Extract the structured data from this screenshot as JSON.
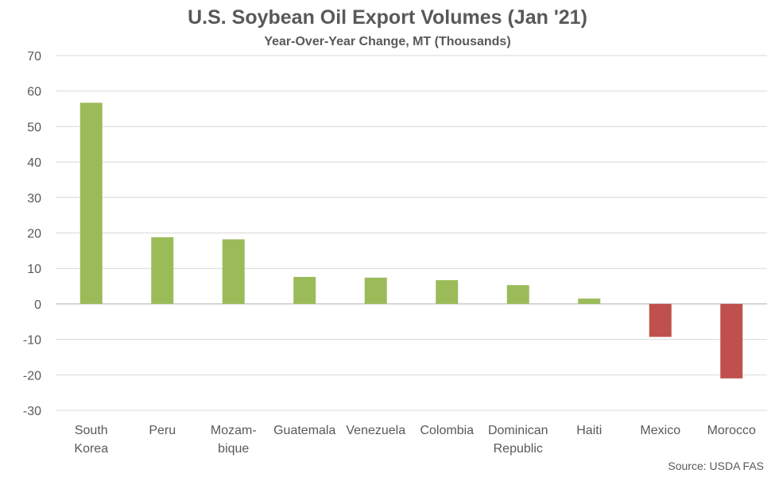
{
  "chart_data": {
    "type": "bar",
    "title": "U.S. Soybean Oil Export Volumes (Jan '21)",
    "subtitle": "Year-Over-Year Change, MT (Thousands)",
    "categories": [
      [
        "South",
        "Korea"
      ],
      [
        "Peru"
      ],
      [
        "Mozam-",
        "bique"
      ],
      [
        "Guatemala"
      ],
      [
        "Venezuela"
      ],
      [
        "Colombia"
      ],
      [
        "Dominican",
        "Republic"
      ],
      [
        "Haiti"
      ],
      [
        "Mexico"
      ],
      [
        "Morocco"
      ]
    ],
    "values": [
      56.7,
      18.8,
      18.2,
      7.6,
      7.4,
      6.7,
      5.3,
      1.5,
      -9.3,
      -21.0
    ],
    "ylim": [
      -30,
      70
    ],
    "yticks": [
      70,
      60,
      50,
      40,
      30,
      20,
      10,
      0,
      -10,
      -20,
      -30
    ],
    "grid": true,
    "legend": "none",
    "colors": {
      "positive": "#9bbb59",
      "negative": "#c0504d",
      "grid": "#d9d9d9",
      "axis": "#bfbfbf",
      "text": "#595959"
    }
  },
  "source": "Source: USDA FAS"
}
